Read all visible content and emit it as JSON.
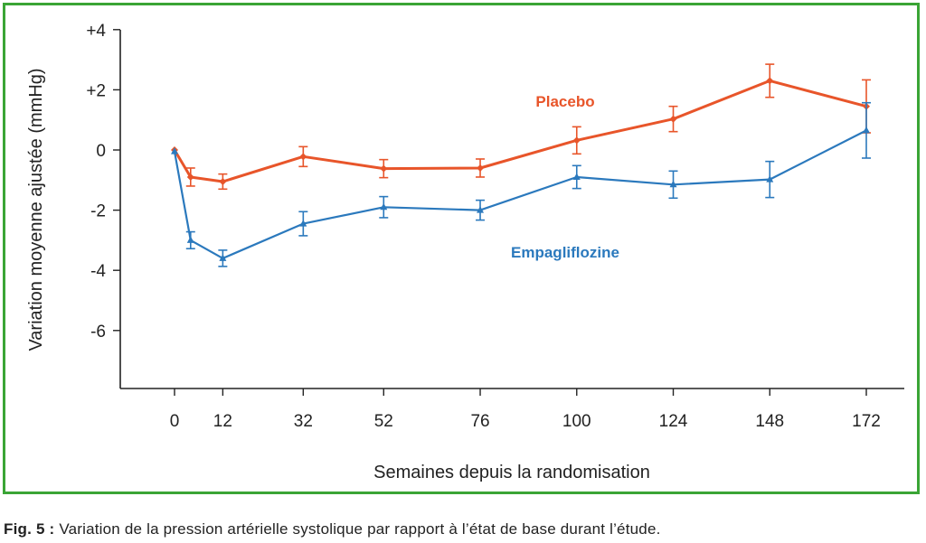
{
  "chart_data": {
    "type": "line",
    "xlabel": "Semaines depuis la randomisation",
    "ylabel": "Variation moyenne ajustée (mmHg)",
    "x_ticks": [
      0,
      12,
      32,
      52,
      76,
      100,
      124,
      148,
      172
    ],
    "x_tick_labels": [
      "0",
      "12",
      "32",
      "52",
      "76",
      "100",
      "124",
      "148",
      "172"
    ],
    "y_ticks": [
      4,
      2,
      0,
      -2,
      -4,
      -6
    ],
    "y_tick_labels": [
      "+4",
      "+2",
      "0",
      "-2",
      "-4",
      "-6"
    ],
    "ylim": [
      -8,
      4
    ],
    "grid": false,
    "series": [
      {
        "name": "Placebo",
        "color": "#e8552a",
        "points": [
          {
            "x": 0,
            "y": 0,
            "err": 0
          },
          {
            "x": 4,
            "y": -0.9,
            "err": 0.3
          },
          {
            "x": 12,
            "y": -1.05,
            "err": 0.25
          },
          {
            "x": 32,
            "y": -0.22,
            "err": 0.33
          },
          {
            "x": 52,
            "y": -0.62,
            "err": 0.3
          },
          {
            "x": 76,
            "y": -0.6,
            "err": 0.3
          },
          {
            "x": 100,
            "y": 0.32,
            "err": 0.45
          },
          {
            "x": 124,
            "y": 1.03,
            "err": 0.42
          },
          {
            "x": 148,
            "y": 2.3,
            "err": 0.55
          },
          {
            "x": 172,
            "y": 1.45,
            "err": 0.88
          }
        ]
      },
      {
        "name": "Empagliflozine",
        "color": "#2b79bd",
        "points": [
          {
            "x": 0,
            "y": -0.05,
            "err": 0
          },
          {
            "x": 4,
            "y": -3.0,
            "err": 0.28
          },
          {
            "x": 12,
            "y": -3.6,
            "err": 0.27
          },
          {
            "x": 32,
            "y": -2.45,
            "err": 0.4
          },
          {
            "x": 52,
            "y": -1.9,
            "err": 0.35
          },
          {
            "x": 76,
            "y": -2.0,
            "err": 0.33
          },
          {
            "x": 100,
            "y": -0.9,
            "err": 0.38
          },
          {
            "x": 124,
            "y": -1.15,
            "err": 0.45
          },
          {
            "x": 148,
            "y": -0.98,
            "err": 0.6
          },
          {
            "x": 172,
            "y": 0.65,
            "err": 0.92
          }
        ]
      }
    ]
  },
  "caption": {
    "lead": "Fig. 5 :",
    "text": " Variation de la pression artérielle systolique par rapport à l’état de base durant l’étude."
  }
}
